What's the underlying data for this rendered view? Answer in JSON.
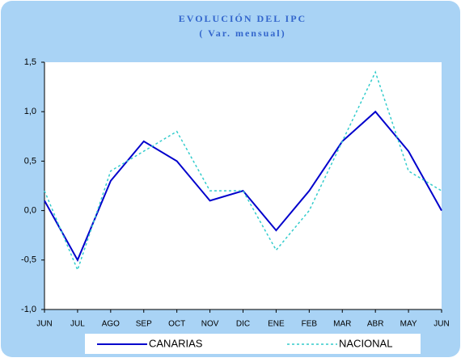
{
  "chart_data": {
    "type": "line",
    "title": "EVOLUCIÓN DEL IPC",
    "subtitle": "( Var. mensual)",
    "categories": [
      "JUN",
      "JUL",
      "AGO",
      "SEP",
      "OCT",
      "NOV",
      "DIC",
      "ENE",
      "FEB",
      "MAR",
      "ABR",
      "MAY",
      "JUN"
    ],
    "series": [
      {
        "name": "CANARIAS",
        "color": "#0000cc",
        "values": [
          0.1,
          -0.5,
          0.3,
          0.7,
          0.5,
          0.1,
          0.2,
          -0.2,
          0.2,
          0.7,
          1.0,
          0.6,
          0.0
        ]
      },
      {
        "name": "NACIONAL",
        "color": "#33cccc",
        "values": [
          0.2,
          -0.6,
          0.4,
          0.6,
          0.8,
          0.2,
          0.2,
          -0.4,
          0.0,
          0.7,
          1.4,
          0.4,
          0.2
        ]
      }
    ],
    "ylim": [
      -1,
      1.5
    ],
    "yticks": [
      {
        "value": -1,
        "label": "-1,0"
      },
      {
        "value": -0.5,
        "label": "-0,5"
      },
      {
        "value": 0,
        "label": "0,0"
      },
      {
        "value": 0.5,
        "label": "0,5"
      },
      {
        "value": 1,
        "label": "1,0"
      },
      {
        "value": 1.5,
        "label": "1,5"
      }
    ],
    "legend": "bottom"
  }
}
